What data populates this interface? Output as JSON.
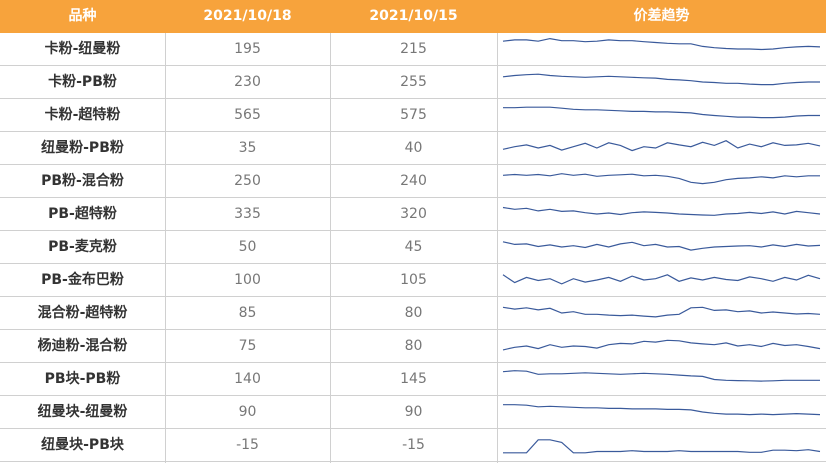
{
  "header": {
    "col_name": "品种",
    "col_date1": "2021/10/18",
    "col_date2": "2021/10/15",
    "col_trend": "价差趋势"
  },
  "chart_data": {
    "type": "table",
    "columns": [
      "品种",
      "2021/10/18",
      "2021/10/15",
      "价差趋势"
    ],
    "line_color": "#3a5a9b",
    "rows": [
      {
        "name": "卡粉-纽曼粉",
        "v1": "195",
        "v2": "215",
        "trend": [
          0.8,
          0.85,
          0.85,
          0.8,
          0.9,
          0.82,
          0.82,
          0.78,
          0.8,
          0.85,
          0.82,
          0.82,
          0.78,
          0.75,
          0.72,
          0.7,
          0.7,
          0.6,
          0.55,
          0.52,
          0.5,
          0.5,
          0.48,
          0.5,
          0.55,
          0.58,
          0.6,
          0.58
        ]
      },
      {
        "name": "卡粉-PB粉",
        "v1": "230",
        "v2": "255",
        "trend": [
          0.7,
          0.75,
          0.78,
          0.8,
          0.75,
          0.72,
          0.7,
          0.68,
          0.7,
          0.72,
          0.7,
          0.68,
          0.66,
          0.65,
          0.6,
          0.58,
          0.55,
          0.5,
          0.48,
          0.45,
          0.45,
          0.42,
          0.4,
          0.4,
          0.45,
          0.48,
          0.5,
          0.5
        ]
      },
      {
        "name": "卡粉-超特粉",
        "v1": "565",
        "v2": "575",
        "trend": [
          0.78,
          0.78,
          0.8,
          0.8,
          0.8,
          0.76,
          0.72,
          0.7,
          0.7,
          0.68,
          0.66,
          0.64,
          0.64,
          0.62,
          0.62,
          0.6,
          0.58,
          0.52,
          0.48,
          0.45,
          0.42,
          0.42,
          0.4,
          0.4,
          0.42,
          0.46,
          0.48,
          0.48
        ]
      },
      {
        "name": "纽曼粉-PB粉",
        "v1": "35",
        "v2": "40",
        "trend": [
          0.45,
          0.55,
          0.62,
          0.5,
          0.6,
          0.42,
          0.55,
          0.68,
          0.5,
          0.7,
          0.6,
          0.4,
          0.55,
          0.5,
          0.7,
          0.62,
          0.55,
          0.72,
          0.6,
          0.78,
          0.5,
          0.65,
          0.55,
          0.7,
          0.6,
          0.62,
          0.68,
          0.58
        ]
      },
      {
        "name": "PB粉-混合粉",
        "v1": "250",
        "v2": "240",
        "trend": [
          0.72,
          0.75,
          0.72,
          0.75,
          0.7,
          0.78,
          0.72,
          0.76,
          0.68,
          0.72,
          0.74,
          0.76,
          0.7,
          0.72,
          0.68,
          0.6,
          0.45,
          0.4,
          0.45,
          0.55,
          0.6,
          0.62,
          0.66,
          0.62,
          0.7,
          0.66,
          0.7,
          0.7
        ]
      },
      {
        "name": "PB-超特粉",
        "v1": "335",
        "v2": "320",
        "trend": [
          0.75,
          0.68,
          0.72,
          0.62,
          0.68,
          0.6,
          0.62,
          0.55,
          0.5,
          0.54,
          0.48,
          0.55,
          0.58,
          0.56,
          0.54,
          0.5,
          0.48,
          0.46,
          0.45,
          0.5,
          0.52,
          0.56,
          0.52,
          0.58,
          0.5,
          0.6,
          0.55,
          0.5
        ]
      },
      {
        "name": "PB-麦克粉",
        "v1": "50",
        "v2": "45",
        "trend": [
          0.7,
          0.6,
          0.62,
          0.52,
          0.58,
          0.5,
          0.55,
          0.48,
          0.6,
          0.5,
          0.62,
          0.68,
          0.55,
          0.6,
          0.5,
          0.52,
          0.38,
          0.45,
          0.5,
          0.52,
          0.54,
          0.55,
          0.5,
          0.58,
          0.52,
          0.6,
          0.54,
          0.56
        ]
      },
      {
        "name": "PB-金布巴粉",
        "v1": "100",
        "v2": "105",
        "trend": [
          0.7,
          0.4,
          0.6,
          0.48,
          0.55,
          0.35,
          0.55,
          0.42,
          0.5,
          0.6,
          0.45,
          0.65,
          0.5,
          0.55,
          0.7,
          0.45,
          0.58,
          0.5,
          0.6,
          0.52,
          0.48,
          0.62,
          0.55,
          0.45,
          0.6,
          0.5,
          0.68,
          0.55
        ]
      },
      {
        "name": "混合粉-超特粉",
        "v1": "85",
        "v2": "80",
        "trend": [
          0.72,
          0.65,
          0.7,
          0.62,
          0.68,
          0.5,
          0.55,
          0.45,
          0.45,
          0.42,
          0.4,
          0.42,
          0.38,
          0.35,
          0.42,
          0.45,
          0.7,
          0.72,
          0.6,
          0.62,
          0.55,
          0.58,
          0.5,
          0.54,
          0.5,
          0.46,
          0.48,
          0.45
        ]
      },
      {
        "name": "杨迪粉-混合粉",
        "v1": "75",
        "v2": "80",
        "trend": [
          0.35,
          0.45,
          0.5,
          0.4,
          0.55,
          0.45,
          0.5,
          0.48,
          0.42,
          0.55,
          0.6,
          0.58,
          0.68,
          0.65,
          0.72,
          0.7,
          0.62,
          0.58,
          0.55,
          0.62,
          0.5,
          0.55,
          0.48,
          0.6,
          0.52,
          0.55,
          0.48,
          0.4
        ]
      },
      {
        "name": "PB块-PB粉",
        "v1": "140",
        "v2": "145",
        "trend": [
          0.78,
          0.82,
          0.8,
          0.68,
          0.7,
          0.7,
          0.72,
          0.74,
          0.72,
          0.7,
          0.68,
          0.7,
          0.72,
          0.7,
          0.68,
          0.65,
          0.62,
          0.6,
          0.48,
          0.45,
          0.44,
          0.43,
          0.42,
          0.43,
          0.45,
          0.45,
          0.45,
          0.45
        ]
      },
      {
        "name": "纽曼块-纽曼粉",
        "v1": "90",
        "v2": "90",
        "trend": [
          0.78,
          0.78,
          0.76,
          0.7,
          0.72,
          0.7,
          0.68,
          0.66,
          0.66,
          0.64,
          0.64,
          0.62,
          0.62,
          0.62,
          0.6,
          0.6,
          0.58,
          0.5,
          0.45,
          0.42,
          0.42,
          0.4,
          0.42,
          0.4,
          0.42,
          0.44,
          0.42,
          0.4
        ]
      },
      {
        "name": "纽曼块-PB块",
        "v1": "-15",
        "v2": "-15",
        "trend": [
          0.2,
          0.2,
          0.2,
          0.7,
          0.7,
          0.6,
          0.2,
          0.2,
          0.25,
          0.25,
          0.25,
          0.28,
          0.25,
          0.25,
          0.25,
          0.28,
          0.25,
          0.25,
          0.25,
          0.25,
          0.25,
          0.22,
          0.22,
          0.3,
          0.3,
          0.28,
          0.32,
          0.25
        ]
      }
    ]
  }
}
